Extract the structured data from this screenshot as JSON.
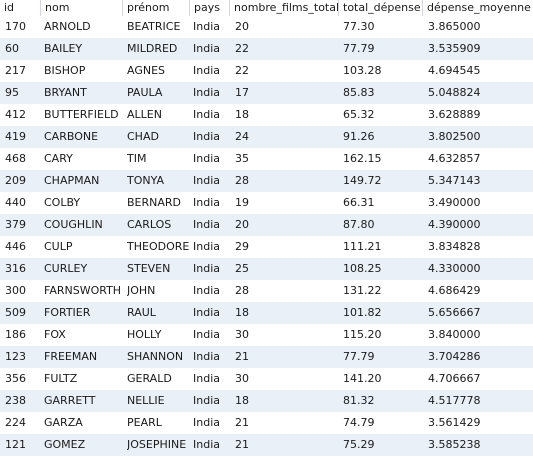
{
  "columns": [
    "id",
    "nom",
    "prénom",
    "pays",
    "nombre_films_total",
    "total_dépense",
    "dépense_moyenne"
  ],
  "rows": [
    [
      "170",
      "ARNOLD",
      "BEATRICE",
      "India",
      "20",
      "77.30",
      "3.865000"
    ],
    [
      "60",
      "BAILEY",
      "MILDRED",
      "India",
      "22",
      "77.79",
      "3.535909"
    ],
    [
      "217",
      "BISHOP",
      "AGNES",
      "India",
      "22",
      "103.28",
      "4.694545"
    ],
    [
      "95",
      "BRYANT",
      "PAULA",
      "India",
      "17",
      "85.83",
      "5.048824"
    ],
    [
      "412",
      "BUTTERFIELD",
      "ALLEN",
      "India",
      "18",
      "65.32",
      "3.628889"
    ],
    [
      "419",
      "CARBONE",
      "CHAD",
      "India",
      "24",
      "91.26",
      "3.802500"
    ],
    [
      "468",
      "CARY",
      "TIM",
      "India",
      "35",
      "162.15",
      "4.632857"
    ],
    [
      "209",
      "CHAPMAN",
      "TONYA",
      "India",
      "28",
      "149.72",
      "5.347143"
    ],
    [
      "440",
      "COLBY",
      "BERNARD",
      "India",
      "19",
      "66.31",
      "3.490000"
    ],
    [
      "379",
      "COUGHLIN",
      "CARLOS",
      "India",
      "20",
      "87.80",
      "4.390000"
    ],
    [
      "446",
      "CULP",
      "THEODORE",
      "India",
      "29",
      "111.21",
      "3.834828"
    ],
    [
      "316",
      "CURLEY",
      "STEVEN",
      "India",
      "25",
      "108.25",
      "4.330000"
    ],
    [
      "300",
      "FARNSWORTH",
      "JOHN",
      "India",
      "28",
      "131.22",
      "4.686429"
    ],
    [
      "509",
      "FORTIER",
      "RAUL",
      "India",
      "18",
      "101.82",
      "5.656667"
    ],
    [
      "186",
      "FOX",
      "HOLLY",
      "India",
      "30",
      "115.20",
      "3.840000"
    ],
    [
      "123",
      "FREEMAN",
      "SHANNON",
      "India",
      "21",
      "77.79",
      "3.704286"
    ],
    [
      "356",
      "FULTZ",
      "GERALD",
      "India",
      "30",
      "141.20",
      "4.706667"
    ],
    [
      "238",
      "GARRETT",
      "NELLIE",
      "India",
      "18",
      "81.32",
      "4.517778"
    ],
    [
      "224",
      "GARZA",
      "PEARL",
      "India",
      "21",
      "74.79",
      "3.561429"
    ],
    [
      "121",
      "GOMEZ",
      "JOSEPHINE",
      "India",
      "21",
      "75.29",
      "3.585238"
    ]
  ]
}
